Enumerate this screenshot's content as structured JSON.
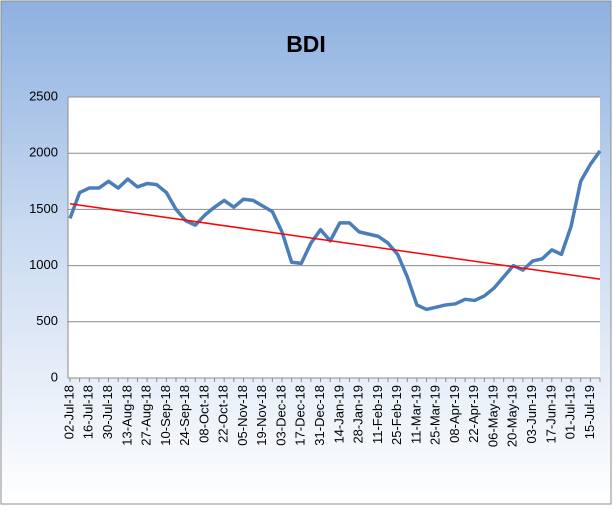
{
  "chart_data": {
    "type": "line",
    "title": "BDI",
    "categories": [
      "02-Jul-18",
      null,
      "16-Jul-18",
      null,
      "30-Jul-18",
      null,
      "13-Aug-18",
      null,
      "27-Aug-18",
      null,
      "10-Sep-18",
      null,
      "24-Sep-18",
      null,
      "08-Oct-18",
      null,
      "22-Oct-18",
      null,
      "05-Nov-18",
      null,
      "19-Nov-18",
      null,
      "03-Dec-18",
      null,
      "17-Dec-18",
      null,
      "31-Dec-18",
      null,
      "14-Jan-19",
      null,
      "28-Jan-19",
      null,
      "11-Feb-19",
      null,
      "25-Feb-19",
      null,
      "11-Mar-19",
      null,
      "25-Mar-19",
      null,
      "08-Apr-19",
      null,
      "22-Apr-19",
      null,
      "06-May-19",
      null,
      "20-May-19",
      null,
      "03-Jun-19",
      null,
      "17-Jun-19",
      null,
      "01-Jul-19",
      null,
      "15-Jul-19",
      null
    ],
    "series": [
      {
        "color": "#4a7ebb",
        "values": [
          1420,
          1650,
          1690,
          1690,
          1750,
          1690,
          1770,
          1700,
          1730,
          1720,
          1650,
          1500,
          1400,
          1360,
          1450,
          1520,
          1580,
          1520,
          1590,
          1580,
          1530,
          1480,
          1300,
          1030,
          1020,
          1200,
          1320,
          1220,
          1380,
          1380,
          1300,
          1280,
          1260,
          1200,
          1100,
          900,
          650,
          610,
          630,
          650,
          660,
          700,
          690,
          730,
          800,
          900,
          1000,
          960,
          1040,
          1060,
          1140,
          1100,
          1350,
          1750,
          1900,
          2020
        ]
      }
    ],
    "trend": {
      "color": "#ff0000",
      "start": 1550,
      "end": 880
    },
    "ylim": [
      0,
      2500
    ],
    "yticks": [
      0,
      500,
      1000,
      1500,
      2000,
      2500
    ],
    "grid": true
  }
}
